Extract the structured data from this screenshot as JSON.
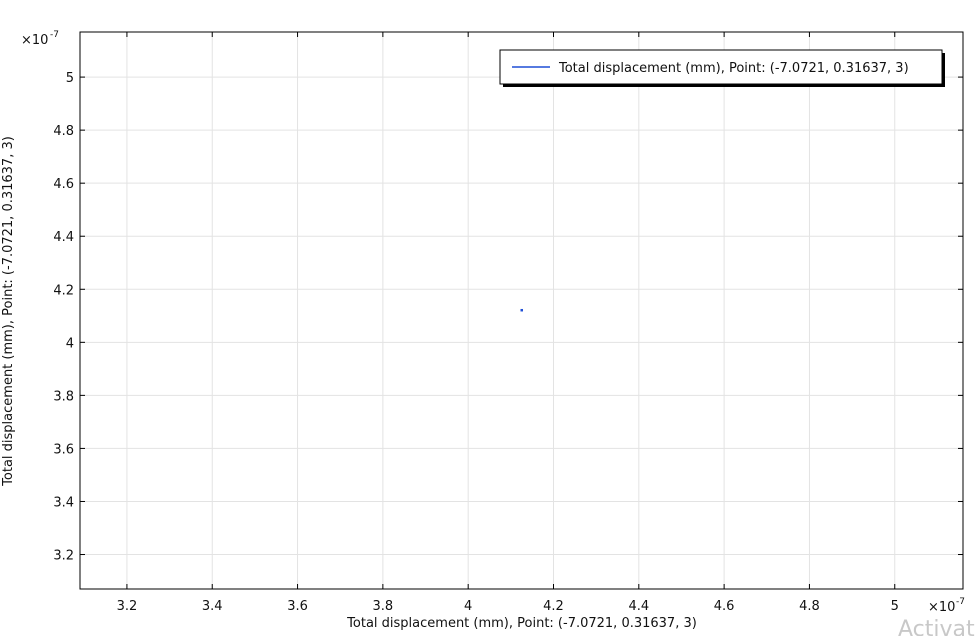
{
  "chart_data": {
    "type": "scatter",
    "xlabel": "Total displacement (mm), Point: (-7.0721, 0.31637, 3)",
    "ylabel": "Total displacement (mm), Point: (-7.0721, 0.31637, 3)",
    "x_exponent": "×10",
    "x_exponent_power": "-7",
    "y_exponent": "×10",
    "y_exponent_power": "-7",
    "xlim": [
      3.09,
      5.16
    ],
    "ylim": [
      3.07,
      5.17
    ],
    "x_ticks": [
      3.2,
      3.4,
      3.6,
      3.8,
      4,
      4.2,
      4.4,
      4.6,
      4.8,
      5
    ],
    "x_tick_labels": [
      "3.2",
      "3.4",
      "3.6",
      "3.8",
      "4",
      "4.2",
      "4.4",
      "4.6",
      "4.8",
      "5"
    ],
    "y_ticks": [
      3.2,
      3.4,
      3.6,
      3.8,
      4,
      4.2,
      4.4,
      4.6,
      4.8,
      5
    ],
    "y_tick_labels": [
      "3.2",
      "3.4",
      "3.6",
      "3.8",
      "4",
      "4.2",
      "4.4",
      "4.6",
      "4.8",
      "5"
    ],
    "grid": true,
    "legend_position": "top-right",
    "series": [
      {
        "name": "Total displacement (mm), Point: (-7.0721, 0.31637, 3)",
        "color": "#1f4fd6",
        "x": [
          4.125
        ],
        "y": [
          4.122
        ]
      }
    ]
  },
  "watermark": "Activat"
}
